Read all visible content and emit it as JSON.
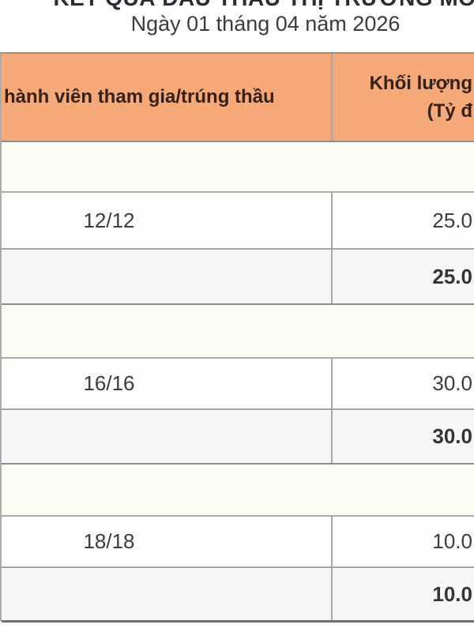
{
  "page": {
    "title_top": "KẾT QUẢ ĐẤU THẦU THỊ TRƯỜNG MỞ",
    "date_line": "Ngày 01 tháng 04 năm 2026"
  },
  "table": {
    "header": {
      "members_col": "hành viên tham gia/trúng thầu",
      "volume_col_line1": "Khối lượng",
      "volume_col_line2": "(Tỷ đ"
    },
    "sections": [
      {
        "detail": {
          "members": "12/12",
          "volume": "25.0"
        },
        "total": {
          "volume": "25.0"
        }
      },
      {
        "detail": {
          "members": "16/16",
          "volume": "30.0"
        },
        "total": {
          "volume": "30.0"
        }
      },
      {
        "detail": {
          "members": "18/18",
          "volume": "10.0"
        },
        "total": {
          "volume": "10.0"
        }
      }
    ],
    "colors": {
      "header_bg": "#f5a978",
      "header_text": "#33211a",
      "section_band_bg": "#fdfdf3",
      "total_row_bg": "#f6f6f6",
      "grid_line": "#a6a6a6",
      "table_top_border": "#97917f"
    }
  }
}
